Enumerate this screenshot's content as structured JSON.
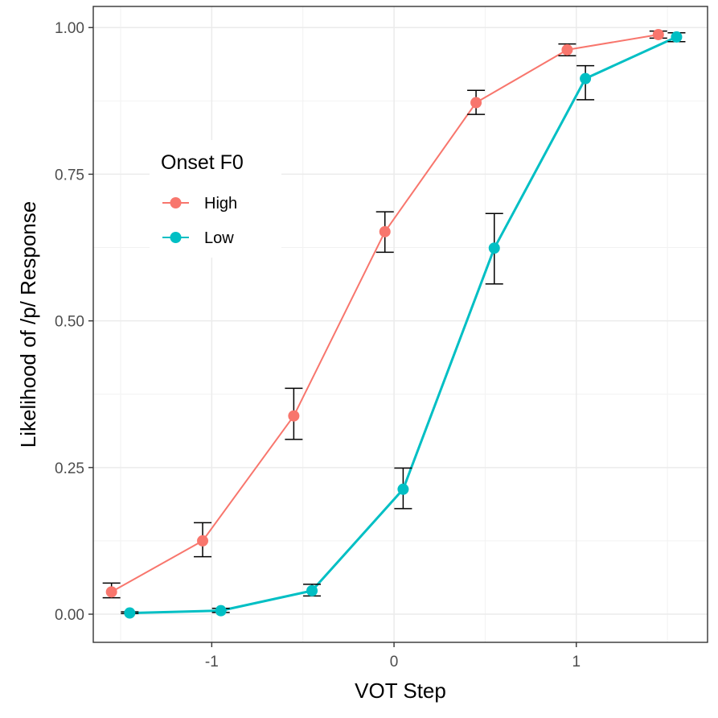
{
  "chart_data": {
    "type": "line",
    "title": "",
    "xlabel": "VOT Step",
    "ylabel": "Likelihood of /p/ Response",
    "xlim": [
      -1.65,
      1.72
    ],
    "ylim": [
      -0.048,
      1.036
    ],
    "x_ticks": [
      -1,
      0,
      1
    ],
    "x_tick_labels": [
      "-1",
      "0",
      "1"
    ],
    "y_ticks": [
      0,
      0.25,
      0.5,
      0.75,
      1.0
    ],
    "y_tick_labels": [
      "0.00",
      "0.25",
      "0.50",
      "0.75",
      "1.00"
    ],
    "grid": true,
    "legend": {
      "title": "Onset F0",
      "position": "upper-left"
    },
    "series": [
      {
        "name": "High",
        "color": "#F8766D",
        "x": [
          -1.55,
          -1.05,
          -0.55,
          -0.05,
          0.45,
          0.95,
          1.45
        ],
        "y": [
          0.038,
          0.125,
          0.338,
          0.652,
          0.872,
          0.962,
          0.988
        ],
        "err_low": [
          0.028,
          0.098,
          0.298,
          0.617,
          0.852,
          0.952,
          0.982
        ],
        "err_high": [
          0.053,
          0.156,
          0.385,
          0.686,
          0.893,
          0.972,
          0.994
        ]
      },
      {
        "name": "Low",
        "color": "#00BFC4",
        "x": [
          -1.45,
          -0.95,
          -0.45,
          0.05,
          0.55,
          1.05,
          1.55
        ],
        "y": [
          0.002,
          0.006,
          0.04,
          0.213,
          0.624,
          0.913,
          0.984
        ],
        "err_low": [
          0.001,
          0.003,
          0.031,
          0.18,
          0.563,
          0.877,
          0.976
        ],
        "err_high": [
          0.004,
          0.01,
          0.051,
          0.249,
          0.683,
          0.935,
          0.991
        ]
      }
    ]
  }
}
